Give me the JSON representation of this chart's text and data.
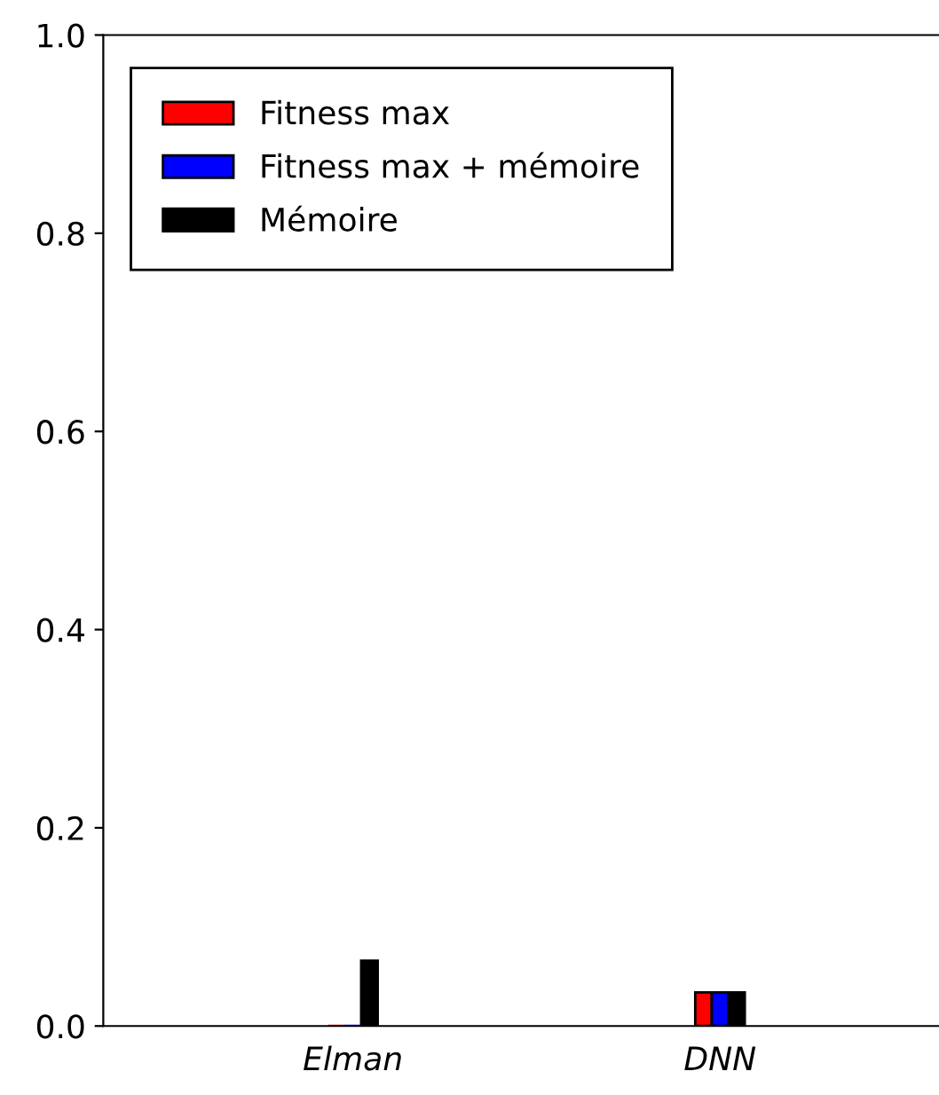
{
  "chart_data": {
    "type": "bar",
    "categories": [
      "Elman",
      "DNN"
    ],
    "series": [
      {
        "name": "Fitness max",
        "color": "#ff0000",
        "values": [
          0,
          0.034
        ]
      },
      {
        "name": "Fitness max + mémoire",
        "color": "#0000ff",
        "values": [
          0,
          0.034
        ]
      },
      {
        "name": "Mémoire",
        "color": "#000000",
        "values": [
          0.066,
          0.034
        ]
      }
    ],
    "ylim": [
      0,
      1
    ],
    "yticks": [
      {
        "value": 0,
        "label": "0.0"
      },
      0.2,
      0.4,
      0.6,
      0.8,
      {
        "value": 1,
        "label": "1.0"
      }
    ],
    "legend": "top left",
    "grid": false
  }
}
